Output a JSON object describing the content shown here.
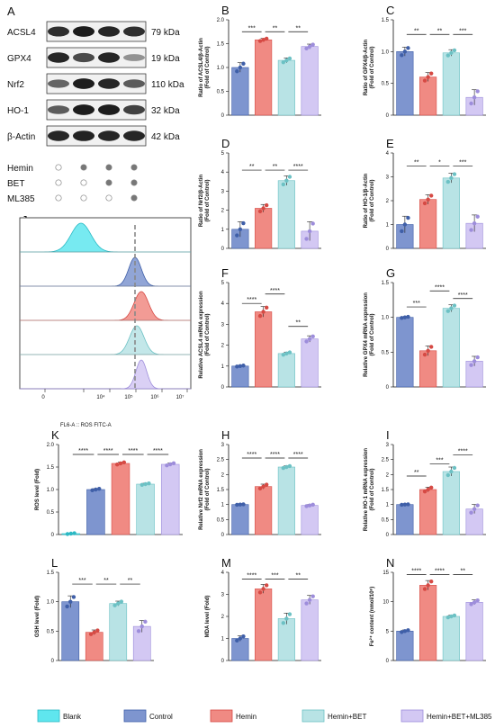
{
  "colors": {
    "Blank": "#5fe6ee",
    "Control": "#7e95cf",
    "Hemin": "#f08a83",
    "Hemin+BET": "#b8e3e5",
    "Hemin+BET+ML385": "#d3c8f3",
    "Control_edge": "#3f5fa8",
    "Hemin_edge": "#d64a44",
    "HeminBET_edge": "#6cc1c4",
    "ML385_edge": "#9d8ddb"
  },
  "panel_A": {
    "letter": "A",
    "rows": [
      {
        "protein": "ACSL4",
        "size": "79 kDa"
      },
      {
        "protein": "GPX4",
        "size": "19 kDa"
      },
      {
        "protein": "Nrf2",
        "size": "110 kDa"
      },
      {
        "protein": "HO-1",
        "size": "32 kDa"
      },
      {
        "protein": "β-Actin",
        "size": "42 kDa"
      }
    ],
    "treatments": [
      {
        "name": "Hemin",
        "dots": [
          0,
          1,
          1,
          1
        ]
      },
      {
        "name": "BET",
        "dots": [
          0,
          0,
          1,
          1
        ]
      },
      {
        "name": "ML385",
        "dots": [
          0,
          0,
          0,
          1
        ]
      }
    ]
  },
  "panel_J": {
    "letter": "J",
    "xlabel": "FL6-A :: ROS FITC-A",
    "x_ticks": [
      "0",
      "10⁴",
      "10⁵",
      "10⁶",
      "10⁷"
    ],
    "samples": [
      "Blank",
      "Control",
      "Hemin",
      "Hemin+BET",
      "Hemin+BET+ML385"
    ]
  },
  "legend": [
    "Blank",
    "Control",
    "Hemin",
    "Hemin+BET",
    "Hemin+BET+ML385"
  ],
  "chart_data": [
    {
      "letter": "B",
      "type": "bar",
      "ylabel": "Ratio of ACSL4/β-Actin\n(Fold of Control)",
      "ylim": [
        0,
        2.0
      ],
      "yticks": [
        0,
        0.5,
        1.0,
        1.5,
        2.0
      ],
      "categories": [
        "Control",
        "Hemin",
        "Hemin+BET",
        "Hemin+BET+ML385"
      ],
      "values": [
        1.0,
        1.58,
        1.15,
        1.44
      ],
      "errors": [
        0.1,
        0.03,
        0.05,
        0.05
      ],
      "sig": [
        {
          "a": 0,
          "b": 1,
          "label": "***",
          "level": 1.75
        },
        {
          "a": 1,
          "b": 2,
          "label": "**",
          "level": 1.75
        },
        {
          "a": 2,
          "b": 3,
          "label": "**",
          "level": 1.75
        }
      ]
    },
    {
      "letter": "C",
      "type": "bar",
      "ylabel": "Ratio of GPX4/β-Actin\n(Fold of Control)",
      "ylim": [
        0,
        1.5
      ],
      "yticks": [
        0,
        0.5,
        1.0,
        1.5
      ],
      "categories": [
        "Control",
        "Hemin",
        "Hemin+BET",
        "Hemin+BET+ML385"
      ],
      "values": [
        1.0,
        0.6,
        0.98,
        0.28
      ],
      "errors": [
        0.07,
        0.07,
        0.05,
        0.12
      ],
      "sig": [
        {
          "a": 0,
          "b": 1,
          "label": "**",
          "level": 1.27
        },
        {
          "a": 1,
          "b": 2,
          "label": "**",
          "level": 1.27
        },
        {
          "a": 2,
          "b": 3,
          "label": "***",
          "level": 1.27
        }
      ]
    },
    {
      "letter": "D",
      "type": "bar",
      "ylabel": "Ratio of Nrf2/β-Actin\n(Fold of Control)",
      "ylim": [
        0,
        5
      ],
      "yticks": [
        0,
        1,
        2,
        3,
        4,
        5
      ],
      "categories": [
        "Control",
        "Hemin",
        "Hemin+BET",
        "Hemin+BET+ML385"
      ],
      "values": [
        1.0,
        2.1,
        3.55,
        0.9
      ],
      "errors": [
        0.4,
        0.2,
        0.25,
        0.5
      ],
      "sig": [
        {
          "a": 0,
          "b": 1,
          "label": "**",
          "level": 4.1
        },
        {
          "a": 1,
          "b": 2,
          "label": "**",
          "level": 4.1
        },
        {
          "a": 2,
          "b": 3,
          "label": "****",
          "level": 4.1
        }
      ]
    },
    {
      "letter": "E",
      "type": "bar",
      "ylabel": "Ratio of HO-1/β-Actin\n(Fold of Control)",
      "ylim": [
        0,
        4
      ],
      "yticks": [
        0,
        1,
        2,
        3,
        4
      ],
      "categories": [
        "Control",
        "Hemin",
        "Hemin+BET",
        "Hemin+BET+ML385"
      ],
      "values": [
        1.0,
        2.05,
        2.95,
        1.05
      ],
      "errors": [
        0.35,
        0.2,
        0.2,
        0.35
      ],
      "sig": [
        {
          "a": 0,
          "b": 1,
          "label": "**",
          "level": 3.45
        },
        {
          "a": 1,
          "b": 2,
          "label": "*",
          "level": 3.45
        },
        {
          "a": 2,
          "b": 3,
          "label": "***",
          "level": 3.45
        }
      ]
    },
    {
      "letter": "F",
      "type": "bar",
      "ylabel": "Relative ACSL4 mRNA expression\n(Fold of Control)",
      "ylim": [
        0,
        5
      ],
      "yticks": [
        0,
        1,
        2,
        3,
        4,
        5
      ],
      "categories": [
        "Control",
        "Hemin",
        "Hemin+BET",
        "Hemin+BET+ML385"
      ],
      "values": [
        1.0,
        3.6,
        1.6,
        2.3
      ],
      "errors": [
        0.03,
        0.25,
        0.07,
        0.15
      ],
      "sig": [
        {
          "a": 0,
          "b": 1,
          "label": "****",
          "level": 4.0
        },
        {
          "a": 1,
          "b": 2,
          "label": "****",
          "level": 4.45
        },
        {
          "a": 2,
          "b": 3,
          "label": "**",
          "level": 2.9
        }
      ]
    },
    {
      "letter": "G",
      "type": "bar",
      "ylabel": "Relative GPX4 mRNA expression\n(Fold of Control)",
      "ylim": [
        0,
        1.5
      ],
      "yticks": [
        0,
        0.5,
        1.0,
        1.5
      ],
      "categories": [
        "Control",
        "Hemin",
        "Hemin+BET",
        "Hemin+BET+ML385"
      ],
      "values": [
        1.0,
        0.52,
        1.13,
        0.37
      ],
      "errors": [
        0.01,
        0.07,
        0.05,
        0.07
      ],
      "sig": [
        {
          "a": 0,
          "b": 1,
          "label": "***",
          "level": 1.15
        },
        {
          "a": 1,
          "b": 2,
          "label": "****",
          "level": 1.38
        },
        {
          "a": 2,
          "b": 3,
          "label": "****",
          "level": 1.27
        }
      ]
    },
    {
      "letter": "K",
      "type": "bar",
      "ylabel": "ROS level (Fold)",
      "ylim": [
        0,
        2.0
      ],
      "yticks": [
        0,
        0.5,
        1.0,
        1.5,
        2.0
      ],
      "categories": [
        "Blank",
        "Control",
        "Hemin",
        "Hemin+BET",
        "Hemin+BET+ML385"
      ],
      "values": [
        0.02,
        1.0,
        1.58,
        1.12,
        1.56
      ],
      "errors": [
        0.01,
        0.02,
        0.03,
        0.02,
        0.03
      ],
      "sig": [
        {
          "a": 0,
          "b": 1,
          "label": "****",
          "level": 1.78
        },
        {
          "a": 1,
          "b": 2,
          "label": "****",
          "level": 1.78
        },
        {
          "a": 2,
          "b": 3,
          "label": "****",
          "level": 1.78
        },
        {
          "a": 3,
          "b": 4,
          "label": "****",
          "level": 1.78
        }
      ]
    },
    {
      "letter": "H",
      "type": "bar",
      "ylabel": "Relative Nrf2 mRNA expression\n(Fold of Control)",
      "ylim": [
        0,
        3.0
      ],
      "yticks": [
        0,
        0.5,
        1.0,
        1.5,
        2.0,
        2.5,
        3.0
      ],
      "categories": [
        "Control",
        "Hemin",
        "Hemin+BET",
        "Hemin+BET+ML385"
      ],
      "values": [
        1.0,
        1.6,
        2.25,
        0.97
      ],
      "errors": [
        0.01,
        0.08,
        0.04,
        0.03
      ],
      "sig": [
        {
          "a": 0,
          "b": 1,
          "label": "****",
          "level": 2.55
        },
        {
          "a": 1,
          "b": 2,
          "label": "****",
          "level": 2.55
        },
        {
          "a": 2,
          "b": 3,
          "label": "****",
          "level": 2.55
        }
      ]
    },
    {
      "letter": "I",
      "type": "bar",
      "ylabel": "Relative HO-1 mRNA expression\n(Fold of Control)",
      "ylim": [
        0,
        3.0
      ],
      "yticks": [
        0,
        0.5,
        1.0,
        1.5,
        2.0,
        2.5,
        3.0
      ],
      "categories": [
        "Control",
        "Hemin",
        "Hemin+BET",
        "Hemin+BET+ML385"
      ],
      "values": [
        1.0,
        1.5,
        2.1,
        0.85
      ],
      "errors": [
        0.01,
        0.08,
        0.15,
        0.15
      ],
      "sig": [
        {
          "a": 0,
          "b": 1,
          "label": "**",
          "level": 1.95
        },
        {
          "a": 1,
          "b": 2,
          "label": "***",
          "level": 2.35
        },
        {
          "a": 2,
          "b": 3,
          "label": "****",
          "level": 2.65
        }
      ]
    },
    {
      "letter": "L",
      "type": "bar",
      "ylabel": "GSH level (Fold)",
      "ylim": [
        0,
        1.5
      ],
      "yticks": [
        0,
        0.5,
        1.0,
        1.5
      ],
      "categories": [
        "Control",
        "Hemin",
        "Hemin+BET",
        "Hemin+BET+ML385"
      ],
      "values": [
        1.0,
        0.48,
        0.97,
        0.58
      ],
      "errors": [
        0.1,
        0.04,
        0.04,
        0.1
      ],
      "sig": [
        {
          "a": 0,
          "b": 1,
          "label": "***",
          "level": 1.3
        },
        {
          "a": 1,
          "b": 2,
          "label": "**",
          "level": 1.3
        },
        {
          "a": 2,
          "b": 3,
          "label": "**",
          "level": 1.3
        }
      ]
    },
    {
      "letter": "M",
      "type": "bar",
      "ylabel": "MDA level (Fold)",
      "ylim": [
        0,
        4
      ],
      "yticks": [
        0,
        1,
        2,
        3,
        4
      ],
      "categories": [
        "Control",
        "Hemin",
        "Hemin+BET",
        "Hemin+BET+ML385"
      ],
      "values": [
        1.0,
        3.25,
        1.9,
        2.75
      ],
      "errors": [
        0.12,
        0.2,
        0.25,
        0.2
      ],
      "sig": [
        {
          "a": 0,
          "b": 1,
          "label": "****",
          "level": 3.7
        },
        {
          "a": 1,
          "b": 2,
          "label": "***",
          "level": 3.7
        },
        {
          "a": 2,
          "b": 3,
          "label": "**",
          "level": 3.7
        }
      ]
    },
    {
      "letter": "N",
      "type": "bar",
      "ylabel": "Fe²⁺ content (nmol/10⁶)",
      "ylim": [
        0,
        15
      ],
      "yticks": [
        0,
        5,
        10,
        15
      ],
      "categories": [
        "Control",
        "Hemin",
        "Hemin+BET",
        "Hemin+BET+ML385"
      ],
      "values": [
        5.0,
        12.8,
        7.5,
        9.9
      ],
      "errors": [
        0.2,
        0.8,
        0.2,
        0.4
      ],
      "sig": [
        {
          "a": 0,
          "b": 1,
          "label": "****",
          "level": 14.6
        },
        {
          "a": 1,
          "b": 2,
          "label": "****",
          "level": 14.6
        },
        {
          "a": 2,
          "b": 3,
          "label": "**",
          "level": 14.6
        }
      ]
    }
  ]
}
